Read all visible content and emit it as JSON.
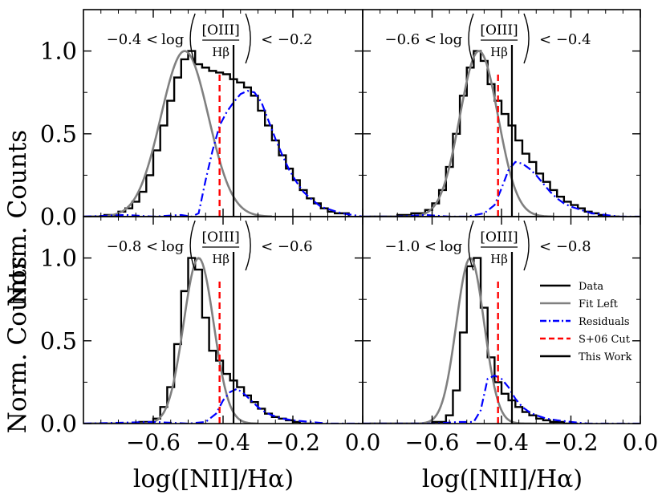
{
  "figure": {
    "ylabel": "Norm. Counts",
    "xlabel": "log([NII]/Hα)",
    "ratio_log": "log",
    "ratio_numerator": "[OIII]",
    "ratio_denominator": "Hβ"
  },
  "colors": {
    "data": "#000000",
    "fit_left": "#808080",
    "residuals": "#0000ff",
    "s06_cut": "#ff0000",
    "this_work": "#000000"
  },
  "chart_data": [
    {
      "type": "line",
      "panel": "top-left",
      "bin_label_low": "−0.4 <",
      "bin_label_high": "< −0.2",
      "xlim": [
        -0.8,
        0.0
      ],
      "ylim": [
        0.0,
        1.25
      ],
      "xticks": [
        -0.6,
        -0.4,
        -0.2,
        0.0
      ],
      "xticklabels": [],
      "yticks": [
        0.0,
        0.5,
        1.0
      ],
      "yticklabels": [
        "0.0",
        "0.5",
        "1.0"
      ],
      "s06_cut": -0.41,
      "this_work": -0.37,
      "series": [
        {
          "name": "Data",
          "style": "step",
          "x": [
            -0.78,
            -0.74,
            -0.7,
            -0.68,
            -0.66,
            -0.64,
            -0.62,
            -0.6,
            -0.58,
            -0.56,
            -0.54,
            -0.52,
            -0.5,
            -0.48,
            -0.46,
            -0.44,
            -0.42,
            -0.4,
            -0.38,
            -0.36,
            -0.34,
            -0.32,
            -0.3,
            -0.28,
            -0.26,
            -0.24,
            -0.22,
            -0.2,
            -0.18,
            -0.16,
            -0.14,
            -0.12,
            -0.1,
            -0.08,
            -0.04
          ],
          "values": [
            0.0,
            0.01,
            0.03,
            0.05,
            0.09,
            0.15,
            0.25,
            0.4,
            0.55,
            0.7,
            0.84,
            0.95,
            1.0,
            0.92,
            0.9,
            0.88,
            0.87,
            0.86,
            0.83,
            0.81,
            0.78,
            0.73,
            0.64,
            0.55,
            0.46,
            0.37,
            0.29,
            0.22,
            0.16,
            0.11,
            0.08,
            0.05,
            0.03,
            0.02,
            0.0
          ]
        },
        {
          "name": "Fit Left",
          "style": "line",
          "mu": -0.51,
          "sigma": 0.068,
          "amp": 1.0,
          "xrange": [
            -0.8,
            -0.26
          ]
        },
        {
          "name": "Residuals",
          "style": "dashdot",
          "x": [
            -0.8,
            -0.68,
            -0.6,
            -0.52,
            -0.49,
            -0.47,
            -0.45,
            -0.43,
            -0.41,
            -0.39,
            -0.37,
            -0.35,
            -0.33,
            -0.31,
            -0.29,
            -0.27,
            -0.25,
            -0.23,
            -0.21,
            -0.19,
            -0.17,
            -0.15,
            -0.12,
            -0.09,
            -0.06,
            -0.03,
            0.0
          ],
          "values": [
            0.0,
            0.01,
            0.0,
            0.01,
            0.0,
            0.02,
            0.22,
            0.4,
            0.55,
            0.63,
            0.69,
            0.74,
            0.76,
            0.75,
            0.69,
            0.58,
            0.47,
            0.37,
            0.28,
            0.21,
            0.15,
            0.11,
            0.06,
            0.04,
            0.02,
            0.01,
            0.0
          ]
        }
      ]
    },
    {
      "type": "line",
      "panel": "top-right",
      "bin_label_low": "−0.6 <",
      "bin_label_high": "< −0.4",
      "xlim": [
        -0.8,
        0.0
      ],
      "ylim": [
        0.0,
        1.25
      ],
      "xticks": [
        -0.6,
        -0.4,
        -0.2,
        0.0
      ],
      "xticklabels": [],
      "yticks": [
        0.0,
        0.5,
        1.0
      ],
      "yticklabels": [],
      "s06_cut": -0.41,
      "this_work": -0.37,
      "series": [
        {
          "name": "Data",
          "style": "step",
          "x": [
            -0.78,
            -0.7,
            -0.66,
            -0.62,
            -0.6,
            -0.58,
            -0.56,
            -0.54,
            -0.52,
            -0.5,
            -0.48,
            -0.46,
            -0.44,
            -0.42,
            -0.4,
            -0.38,
            -0.36,
            -0.34,
            -0.32,
            -0.3,
            -0.28,
            -0.26,
            -0.24,
            -0.22,
            -0.2,
            -0.18,
            -0.16,
            -0.14,
            -0.12,
            -0.1,
            -0.06
          ],
          "values": [
            0.0,
            0.01,
            0.02,
            0.04,
            0.08,
            0.16,
            0.3,
            0.5,
            0.73,
            0.9,
            1.0,
            0.94,
            0.8,
            0.7,
            0.62,
            0.55,
            0.46,
            0.38,
            0.33,
            0.26,
            0.21,
            0.16,
            0.12,
            0.09,
            0.07,
            0.05,
            0.03,
            0.02,
            0.01,
            0.0,
            0.0
          ]
        },
        {
          "name": "Fit Left",
          "style": "line",
          "mu": -0.465,
          "sigma": 0.055,
          "amp": 1.0,
          "xrange": [
            -0.8,
            -0.25
          ]
        },
        {
          "name": "Residuals",
          "style": "dashdot",
          "x": [
            -0.8,
            -0.7,
            -0.62,
            -0.55,
            -0.5,
            -0.45,
            -0.42,
            -0.4,
            -0.38,
            -0.36,
            -0.34,
            -0.32,
            -0.3,
            -0.28,
            -0.26,
            -0.24,
            -0.22,
            -0.2,
            -0.17,
            -0.14,
            -0.1,
            -0.06,
            0.0
          ],
          "values": [
            0.0,
            0.0,
            0.01,
            0.0,
            0.0,
            0.02,
            0.07,
            0.17,
            0.28,
            0.33,
            0.32,
            0.29,
            0.25,
            0.2,
            0.15,
            0.11,
            0.08,
            0.06,
            0.04,
            0.02,
            0.01,
            0.0,
            0.0
          ]
        }
      ]
    },
    {
      "type": "line",
      "panel": "bottom-left",
      "bin_label_low": "−0.8 <",
      "bin_label_high": "< −0.6",
      "xlim": [
        -0.8,
        0.0
      ],
      "ylim": [
        0.0,
        1.25
      ],
      "xticks": [
        -0.6,
        -0.4,
        -0.2,
        0.0
      ],
      "xticklabels": [
        "−0.6",
        "−0.4",
        "−0.2",
        "0.0"
      ],
      "yticks": [
        0.0,
        0.5,
        1.0
      ],
      "yticklabels": [
        "0.0",
        "0.5",
        "1.0"
      ],
      "s06_cut": -0.41,
      "this_work": -0.37,
      "series": [
        {
          "name": "Data",
          "style": "step",
          "x": [
            -0.78,
            -0.64,
            -0.6,
            -0.58,
            -0.56,
            -0.54,
            -0.52,
            -0.5,
            -0.48,
            -0.46,
            -0.44,
            -0.42,
            -0.4,
            -0.38,
            -0.36,
            -0.34,
            -0.32,
            -0.3,
            -0.28,
            -0.26,
            -0.24,
            -0.22,
            -0.2,
            -0.18,
            -0.14
          ],
          "values": [
            0.0,
            0.01,
            0.03,
            0.1,
            0.22,
            0.48,
            0.8,
            1.0,
            0.93,
            0.64,
            0.44,
            0.38,
            0.3,
            0.26,
            0.22,
            0.17,
            0.13,
            0.09,
            0.06,
            0.04,
            0.03,
            0.02,
            0.01,
            0.0,
            0.0
          ]
        },
        {
          "name": "Fit Left",
          "style": "line",
          "mu": -0.47,
          "sigma": 0.043,
          "amp": 1.0,
          "xrange": [
            -0.8,
            -0.3
          ]
        },
        {
          "name": "Residuals",
          "style": "dashdot",
          "x": [
            -0.8,
            -0.6,
            -0.5,
            -0.45,
            -0.42,
            -0.4,
            -0.38,
            -0.36,
            -0.34,
            -0.32,
            -0.3,
            -0.28,
            -0.26,
            -0.23,
            -0.2,
            -0.15,
            -0.1,
            0.0
          ],
          "values": [
            0.0,
            0.01,
            0.0,
            0.01,
            0.06,
            0.14,
            0.19,
            0.21,
            0.18,
            0.14,
            0.1,
            0.07,
            0.05,
            0.03,
            0.02,
            0.01,
            0.0,
            0.0
          ]
        }
      ]
    },
    {
      "type": "line",
      "panel": "bottom-right",
      "bin_label_low": "−1.0 <",
      "bin_label_high": "< −0.8",
      "xlim": [
        -0.8,
        0.0
      ],
      "ylim": [
        0.0,
        1.25
      ],
      "xticks": [
        -0.6,
        -0.4,
        -0.2,
        0.0
      ],
      "xticklabels": [
        "−0.6",
        "−0.4",
        "−0.2",
        "0.0"
      ],
      "yticks": [
        0.0,
        0.5,
        1.0
      ],
      "yticklabels": [],
      "s06_cut": -0.41,
      "this_work": -0.37,
      "series": [
        {
          "name": "Data",
          "style": "step",
          "x": [
            -0.78,
            -0.6,
            -0.56,
            -0.54,
            -0.52,
            -0.5,
            -0.48,
            -0.46,
            -0.44,
            -0.42,
            -0.4,
            -0.38,
            -0.36,
            -0.34,
            -0.32,
            -0.3,
            -0.28,
            -0.26,
            -0.24,
            -0.22,
            -0.18
          ],
          "values": [
            0.0,
            0.01,
            0.05,
            0.2,
            0.55,
            0.95,
            1.0,
            0.7,
            0.4,
            0.25,
            0.18,
            0.14,
            0.1,
            0.07,
            0.05,
            0.03,
            0.02,
            0.01,
            0.01,
            0.0,
            0.0
          ]
        },
        {
          "name": "Fit Left",
          "style": "line",
          "mu": -0.49,
          "sigma": 0.04,
          "amp": 1.0,
          "xrange": [
            -0.8,
            -0.3
          ]
        },
        {
          "name": "Residuals",
          "style": "dashdot",
          "x": [
            -0.8,
            -0.6,
            -0.52,
            -0.48,
            -0.46,
            -0.44,
            -0.42,
            -0.4,
            -0.38,
            -0.36,
            -0.34,
            -0.32,
            -0.3,
            -0.27,
            -0.24,
            -0.2,
            -0.15,
            0.0
          ],
          "values": [
            0.0,
            0.0,
            0.01,
            0.01,
            0.08,
            0.27,
            0.29,
            0.27,
            0.22,
            0.15,
            0.1,
            0.07,
            0.05,
            0.03,
            0.02,
            0.01,
            0.0,
            0.0
          ]
        }
      ]
    }
  ],
  "legend": {
    "position": "bottom-right panel, right side",
    "items": [
      {
        "label": "Data",
        "key": "data",
        "style": "solid"
      },
      {
        "label": "Fit Left",
        "key": "fit_left",
        "style": "solid"
      },
      {
        "label": "Residuals",
        "key": "residuals",
        "style": "dashdot"
      },
      {
        "label": "S+06 Cut",
        "key": "s06_cut",
        "style": "dashed"
      },
      {
        "label": "This Work",
        "key": "this_work",
        "style": "solid"
      }
    ]
  }
}
